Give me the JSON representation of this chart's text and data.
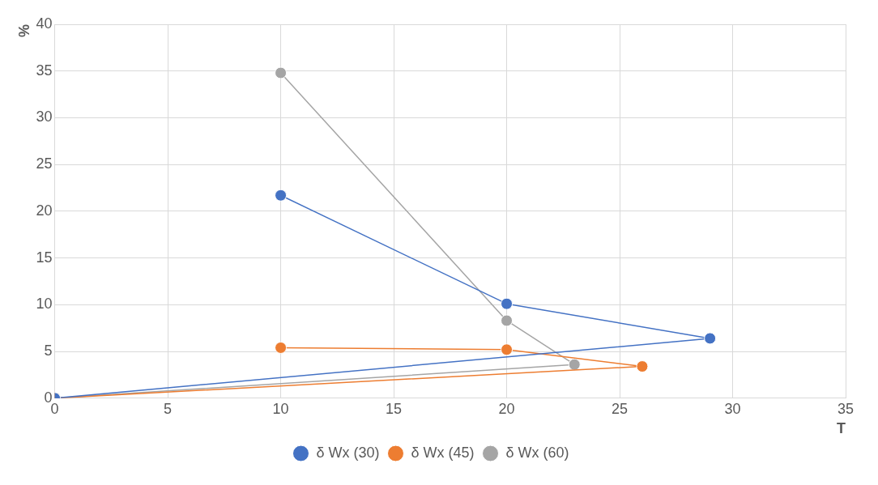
{
  "chart_data": {
    "type": "line",
    "xlabel": "T",
    "ylabel": "%",
    "series": [
      {
        "name": "δ Wx (30)",
        "color": "#4472c4",
        "x": [
          10,
          20,
          29,
          0
        ],
        "values": [
          21.7,
          10.1,
          6.4,
          0
        ]
      },
      {
        "name": "δ Wx (45)",
        "color": "#ed7d31",
        "x": [
          10,
          20,
          26,
          0
        ],
        "values": [
          5.4,
          5.2,
          3.4,
          0
        ]
      },
      {
        "name": "δ Wx (60)",
        "color": "#a5a5a5",
        "x": [
          10,
          20,
          23,
          0
        ],
        "values": [
          34.8,
          8.3,
          3.6,
          0
        ]
      }
    ],
    "xlim": [
      0,
      35
    ],
    "xticks": [
      0,
      5,
      10,
      15,
      20,
      25,
      30,
      35
    ],
    "ylim": [
      0,
      40
    ],
    "yticks": [
      0,
      5,
      10,
      15,
      20,
      25,
      30,
      35,
      40
    ],
    "grid": true,
    "legend": "bottom",
    "marker": "circle",
    "line_style": "solid"
  }
}
